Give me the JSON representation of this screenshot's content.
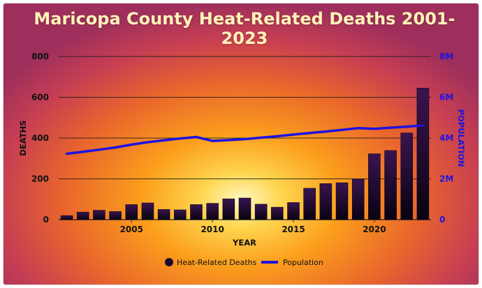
{
  "chart_data": {
    "type": "bar",
    "title_lines": [
      "Maricopa County Heat-Related Deaths 2001-",
      "2023"
    ],
    "xlabel": "YEAR",
    "ylabel": "DEATHS",
    "y2label": "POPULATION",
    "x": [
      2001,
      2002,
      2003,
      2004,
      2005,
      2006,
      2007,
      2008,
      2009,
      2010,
      2011,
      2012,
      2013,
      2014,
      2015,
      2016,
      2017,
      2018,
      2019,
      2020,
      2021,
      2022,
      2023
    ],
    "x_ticks": [
      "2005",
      "2010",
      "2015",
      "2020"
    ],
    "ylim": [
      0,
      800
    ],
    "y_ticks": [
      "0",
      "200",
      "400",
      "600",
      "800"
    ],
    "y2lim": [
      0,
      8000000
    ],
    "y2_ticks": [
      "0",
      "2M",
      "4M",
      "6M",
      "8M"
    ],
    "grid": true,
    "legend_position": "bottom",
    "series": [
      {
        "name": "Heat-Related Deaths",
        "type": "bar",
        "axis": "left",
        "color": "#1a0830",
        "values": [
          20,
          37,
          46,
          40,
          74,
          82,
          50,
          48,
          74,
          80,
          102,
          106,
          76,
          61,
          84,
          154,
          177,
          181,
          199,
          323,
          339,
          425,
          645
        ]
      },
      {
        "name": "Population",
        "type": "line",
        "axis": "right",
        "color": "#1f12e0",
        "values": [
          3230000,
          3330000,
          3430000,
          3540000,
          3680000,
          3800000,
          3890000,
          3980000,
          4050000,
          3860000,
          3900000,
          3950000,
          4020000,
          4090000,
          4170000,
          4250000,
          4320000,
          4400000,
          4490000,
          4450000,
          4510000,
          4560000,
          4620000
        ]
      }
    ]
  }
}
